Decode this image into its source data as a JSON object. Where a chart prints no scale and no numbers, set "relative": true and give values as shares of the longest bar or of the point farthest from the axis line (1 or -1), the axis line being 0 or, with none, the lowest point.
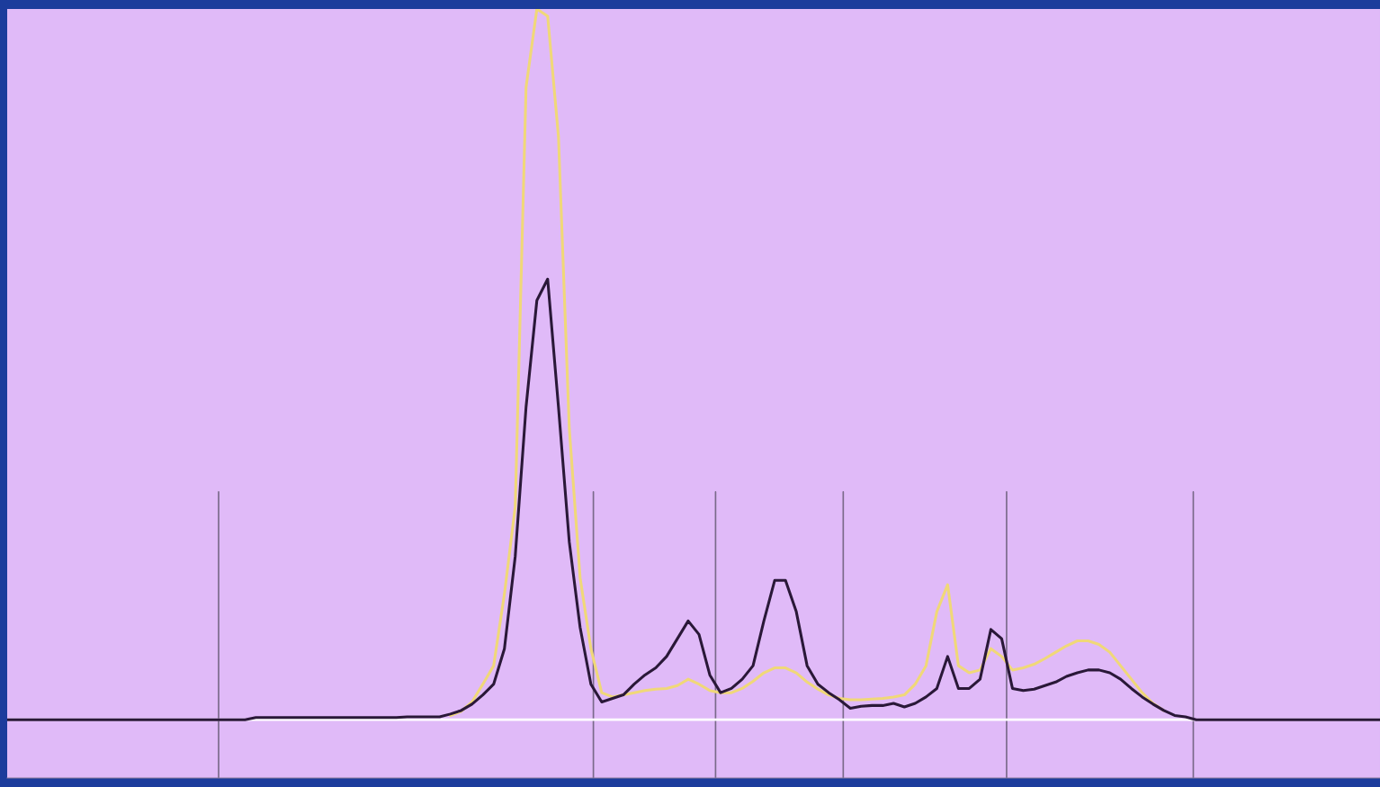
{
  "chart_data": {
    "type": "line",
    "relative": true,
    "categories": [
      null,
      null,
      null,
      null,
      null,
      null,
      null,
      null,
      null,
      null,
      null,
      null,
      null,
      null,
      null,
      null,
      null,
      null,
      null,
      null,
      null,
      null,
      null,
      null,
      null,
      null,
      null,
      null,
      null,
      null,
      null,
      null,
      null,
      null,
      null,
      null,
      null,
      null,
      null,
      null,
      null,
      null,
      null,
      null,
      null,
      null,
      null,
      null,
      null,
      null,
      null,
      null,
      null,
      null,
      null,
      null,
      null,
      null,
      null,
      null,
      null,
      null,
      null,
      null,
      null,
      null,
      null,
      null,
      null,
      null,
      null,
      null,
      null,
      null,
      null,
      null,
      null,
      null,
      null,
      null,
      null,
      null,
      null,
      null,
      null,
      null,
      null,
      null,
      null,
      null,
      null,
      null,
      null,
      null,
      null,
      null,
      null,
      null,
      null,
      null,
      null,
      null,
      null,
      null,
      null,
      null,
      null,
      null,
      null,
      null,
      null,
      null,
      null,
      null,
      null,
      null,
      null,
      null,
      null,
      null,
      null,
      null,
      null,
      null,
      null,
      null,
      null,
      null
    ],
    "series": [
      {
        "color": "#f0d878",
        "values": [
          null,
          null,
          null,
          null,
          null,
          null,
          null,
          null,
          null,
          null,
          null,
          null,
          null,
          null,
          null,
          null,
          null,
          null,
          null,
          null,
          null,
          null,
          null,
          null,
          null,
          null,
          null,
          null,
          null,
          null,
          null,
          null,
          null,
          null,
          null,
          null,
          null,
          null,
          null,
          null,
          null,
          0.006,
          0.012,
          0.025,
          0.05,
          0.076,
          0.177,
          0.3,
          0.89,
          1,
          0.99,
          0.82,
          0.41,
          0.2,
          0.1,
          0.038,
          0.032,
          0.035,
          0.038,
          0.041,
          0.043,
          0.044,
          0.048,
          0.057,
          0.05,
          0.041,
          0.038,
          0.038,
          0.044,
          0.054,
          0.066,
          0.073,
          0.073,
          0.066,
          0.053,
          0.043,
          0.035,
          0.03,
          0.028,
          0.028,
          0.029,
          0.03,
          0.032,
          0.035,
          0.05,
          0.076,
          0.152,
          0.19,
          0.076,
          0.066,
          0.07,
          0.1,
          0.089,
          0.07,
          0.073,
          0.078,
          0.086,
          0.095,
          0.104,
          0.111,
          0.111,
          0.106,
          0.095,
          0.076,
          0.057,
          0.038,
          0.023,
          0.013,
          null,
          null,
          null,
          null,
          null,
          null,
          null,
          null,
          null,
          null,
          null,
          null,
          null,
          null,
          null,
          null,
          null,
          null,
          null,
          null
        ]
      },
      {
        "color": "#2a1838",
        "values": [
          0,
          0,
          0,
          0,
          0,
          0,
          0,
          0,
          0,
          0,
          0,
          0,
          0,
          0,
          0,
          0,
          0,
          0,
          0,
          0,
          0,
          0,
          0,
          0.003,
          0.003,
          0.003,
          0.003,
          0.003,
          0.003,
          0.003,
          0.003,
          0.003,
          0.003,
          0.003,
          0.003,
          0.003,
          0.003,
          0.004,
          0.004,
          0.004,
          0.004,
          0.008,
          0.013,
          0.022,
          0.035,
          0.05,
          0.1,
          0.23,
          0.44,
          0.59,
          0.62,
          0.44,
          0.25,
          0.13,
          0.05,
          0.025,
          0.03,
          0.035,
          0.05,
          0.063,
          0.073,
          0.089,
          0.114,
          0.139,
          0.12,
          0.063,
          0.038,
          0.044,
          0.057,
          0.076,
          0.139,
          0.196,
          0.196,
          0.152,
          0.076,
          0.05,
          0.038,
          0.028,
          0.016,
          0.019,
          0.02,
          0.02,
          0.023,
          0.018,
          0.023,
          0.032,
          0.044,
          0.089,
          0.044,
          0.044,
          0.057,
          0.127,
          0.114,
          0.044,
          0.041,
          0.043,
          0.048,
          0.053,
          0.061,
          0.066,
          0.07,
          0.07,
          0.066,
          0.057,
          0.044,
          0.032,
          0.022,
          0.013,
          0.006,
          0.004,
          0,
          0,
          0,
          0,
          0,
          0,
          0,
          0,
          0,
          0,
          0,
          0,
          0,
          0,
          0,
          0,
          0,
          0
        ]
      }
    ],
    "grid": false
  }
}
